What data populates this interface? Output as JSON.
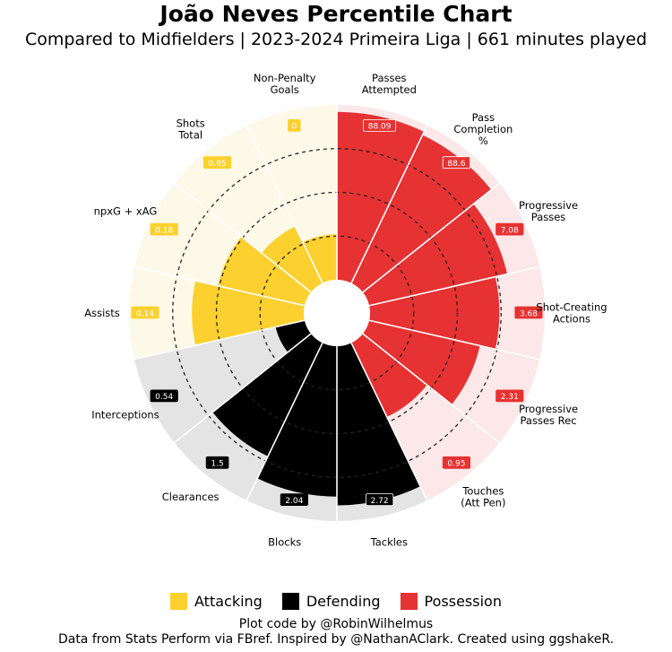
{
  "title": "João Neves Percentile Chart",
  "subtitle": "Compared to Midfielders | 2023-2024 Primeira Liga | 661 minutes played",
  "legend": [
    {
      "label": "Attacking",
      "color": "#fcd12f"
    },
    {
      "label": "Defending",
      "color": "#000000"
    },
    {
      "label": "Possession",
      "color": "#e63232"
    }
  ],
  "credits": {
    "line1": "Plot code by @RobinWilhelmus",
    "line2": "Data from Stats Perform via FBref. Inspired by @NathanAClark. Created using ggshakeR."
  },
  "chart_data": {
    "type": "pizza",
    "rlim": [
      0,
      100
    ],
    "grid_circles": [
      25,
      50,
      75
    ],
    "categories": [
      "Passes\nAttempted",
      "Pass\nCompletion\n%",
      "Progressive\nPasses",
      "Shot-Creating\nActions",
      "Progressive\nPasses Rec",
      "Touches\n(Att Pen)",
      "Tackles",
      "Blocks",
      "Clearances",
      "Interceptions",
      "Assists",
      "npxG + xAG",
      "Shots\nTotal",
      "Non-Penalty\nGoals"
    ],
    "groups": [
      "Possession",
      "Possession",
      "Possession",
      "Possession",
      "Possession",
      "Possession",
      "Defending",
      "Defending",
      "Defending",
      "Defending",
      "Attacking",
      "Attacking",
      "Attacking",
      "Attacking"
    ],
    "percentiles": [
      96,
      94,
      81,
      74,
      65,
      47,
      91,
      86,
      72,
      17,
      64,
      51,
      36,
      26
    ],
    "values": [
      "88.09",
      "88.6",
      "7.08",
      "3.68",
      "2.31",
      "0.95",
      "2.72",
      "2.04",
      "1.5",
      "0.54",
      "0.14",
      "0.18",
      "0.95",
      "0"
    ],
    "group_colors": {
      "Possession": "#e63232",
      "Defending": "#000000",
      "Attacking": "#fcd12f"
    },
    "background_colors": {
      "Possession": "#fce8e8",
      "Defending": "#e4e4e4",
      "Attacking": "#fdf9e9"
    }
  }
}
